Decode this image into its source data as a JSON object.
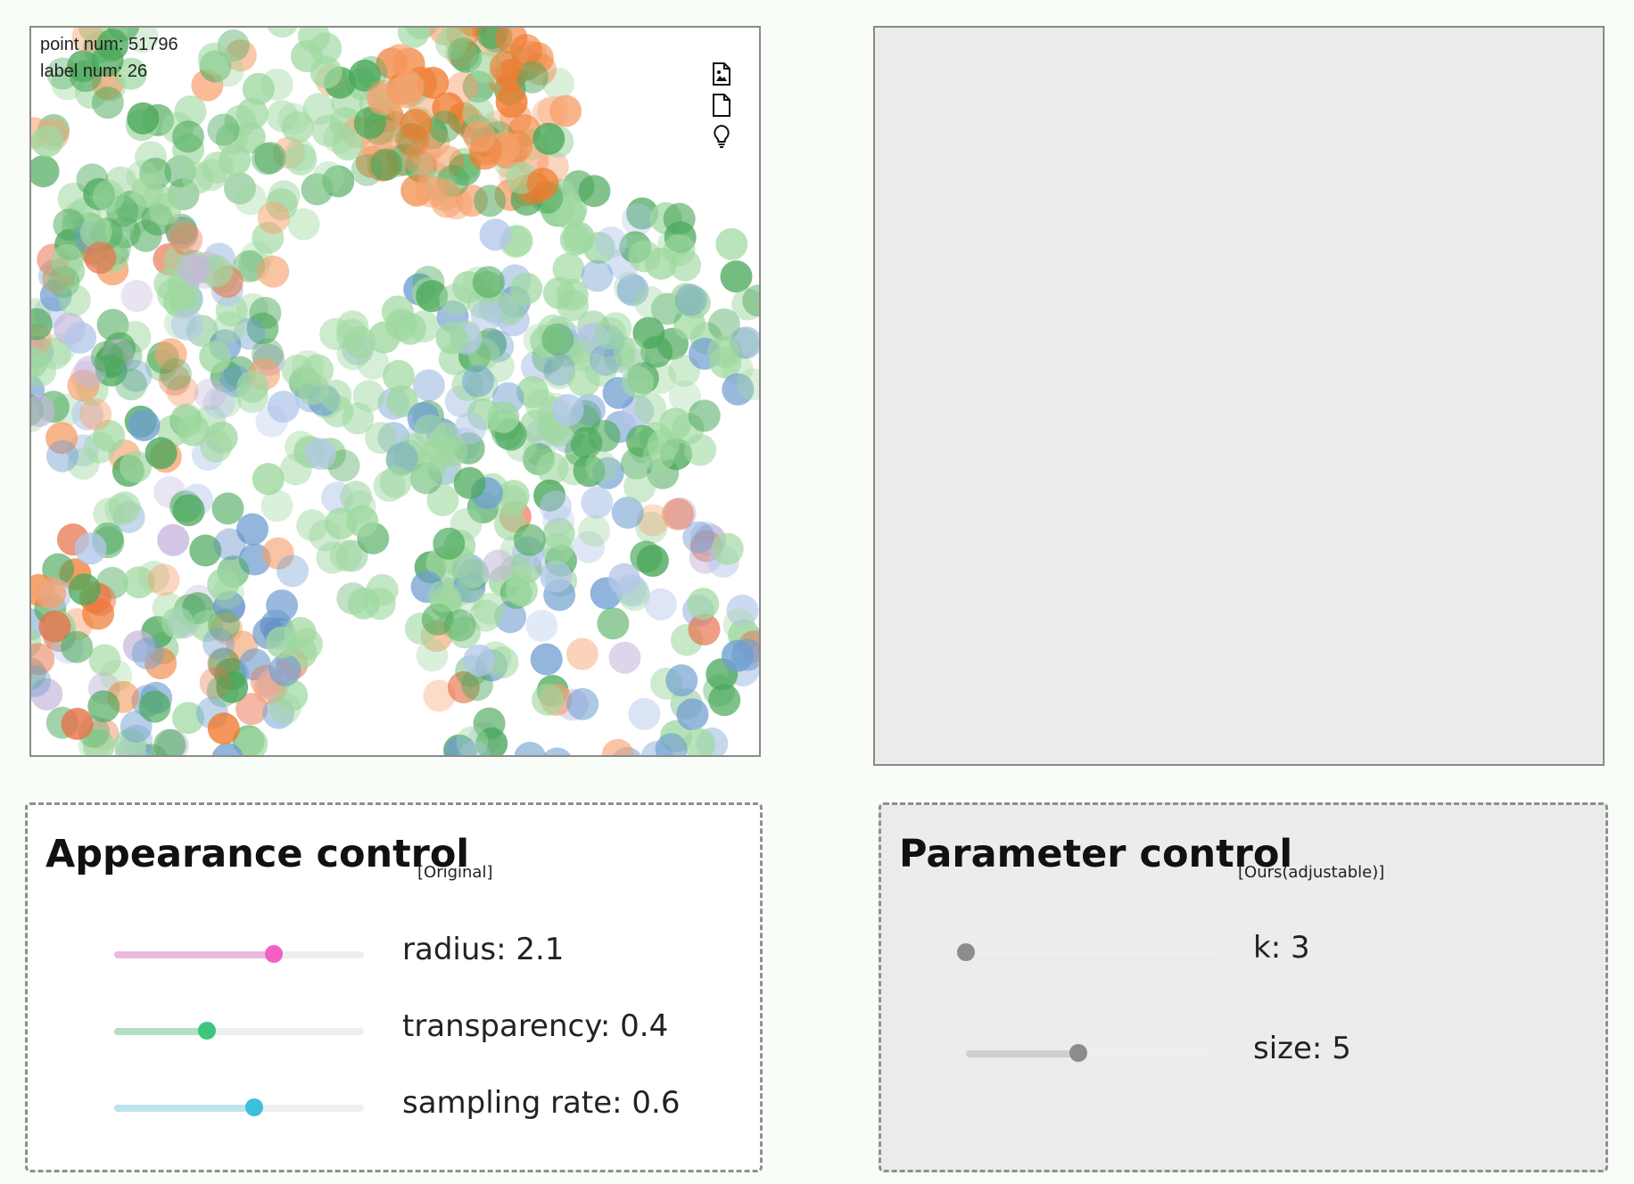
{
  "scatter": {
    "point_num_label": "point num: 51796",
    "label_num_label": "label num: 26",
    "icons": [
      "save-image-icon",
      "file-icon",
      "lightbulb-icon"
    ],
    "palette": [
      "#9fd8a0",
      "#4aa85a",
      "#f6a06c",
      "#f07a2e",
      "#6f9ed0",
      "#b3c6ea",
      "#c5b6dc",
      "#e8704a",
      "#5a8ac4"
    ]
  },
  "appearance": {
    "title": "Appearance control",
    "subtitle": "[Original]",
    "sliders": [
      {
        "label": "radius: 2.1",
        "fraction": 0.64,
        "fill_color": "#ecb9df",
        "thumb_color": "#f55fc4"
      },
      {
        "label": "transparency: 0.4",
        "fraction": 0.37,
        "fill_color": "#b3dfc2",
        "thumb_color": "#3fc57e"
      },
      {
        "label": "sampling rate: 0.6",
        "fraction": 0.56,
        "fill_color": "#bfe2ee",
        "thumb_color": "#3cc0db"
      }
    ]
  },
  "parameter": {
    "title": "Parameter control",
    "subtitle": "[Ours(adjustable)]",
    "sliders": [
      {
        "label": "k: 3",
        "fraction": 0.0,
        "fill_color": "#cfcfcf",
        "thumb_color": "#8c8c8c"
      },
      {
        "label": "size: 5",
        "fraction": 0.45,
        "fill_color": "#cfcfcf",
        "thumb_color": "#8c8c8c"
      }
    ]
  }
}
